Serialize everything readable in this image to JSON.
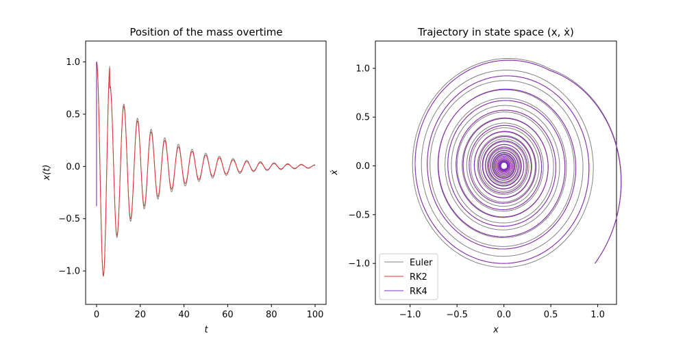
{
  "chart_data": [
    {
      "type": "line",
      "title": "Position of the mass overtime",
      "xlabel": "t",
      "ylabel": "x(t)",
      "xlim": [
        -5,
        105
      ],
      "ylim": [
        -1.32,
        1.2
      ],
      "xticks": [
        0,
        20,
        40,
        60,
        80,
        100
      ],
      "xtick_labels": [
        "0",
        "20",
        "40",
        "60",
        "80",
        "100"
      ],
      "yticks": [
        -1.0,
        -0.5,
        0.0,
        0.5,
        1.0
      ],
      "ytick_labels": [
        "−1.0",
        "−0.5",
        "0.0",
        "0.5",
        "1.0"
      ],
      "t_range": [
        0,
        100
      ],
      "series": [
        {
          "name": "Euler",
          "color": "#808080",
          "amplitude_peaks": [
            1.0,
            1.07,
            0.93,
            0.81,
            0.7,
            0.61,
            0.53,
            0.45,
            0.4,
            0.34,
            0.3,
            0.26,
            0.22,
            0.2,
            0.17,
            0.15,
            0.13,
            0.11,
            0.1,
            0.09,
            0.08,
            0.07,
            0.06,
            0.05,
            0.04,
            0.035,
            0.03,
            0.025,
            0.02,
            0.018,
            0.015,
            0.013
          ]
        },
        {
          "name": "RK2",
          "color": "#e8302f",
          "amplitude_peaks": [
            1.0,
            1.07,
            0.92,
            0.79,
            0.67,
            0.57,
            0.49,
            0.42,
            0.36,
            0.3,
            0.26,
            0.22,
            0.19,
            0.16,
            0.14,
            0.12,
            0.1,
            0.09,
            0.08,
            0.07,
            0.06,
            0.05,
            0.04,
            0.035,
            0.03,
            0.025,
            0.02,
            0.018,
            0.015,
            0.013,
            0.011,
            0.01
          ]
        },
        {
          "name": "RK4",
          "color": "#6a1b9a",
          "note_segment_t": [
            0,
            0.3
          ],
          "values_start": [
            1.0,
            -0.38
          ]
        }
      ]
    },
    {
      "type": "line",
      "title": "Trajectory in state space (x, ẋ)",
      "xlabel": "x",
      "ylabel": "ẋ",
      "xlim": [
        -1.37,
        1.2
      ],
      "ylim": [
        -1.42,
        1.28
      ],
      "xticks": [
        -1.0,
        -0.5,
        0.0,
        0.5,
        1.0
      ],
      "xtick_labels": [
        "−1.0",
        "−0.5",
        "0.0",
        "0.5",
        "1.0"
      ],
      "yticks": [
        -1.0,
        -0.5,
        0.0,
        0.5,
        1.0
      ],
      "ytick_labels": [
        "−1.0",
        "−0.5",
        "0.0",
        "0.5",
        "1.0"
      ],
      "legend": {
        "position": "lower-left",
        "entries": [
          "Euler",
          "RK2",
          "RK4"
        ]
      },
      "series": [
        {
          "name": "Euler",
          "color": "#808080",
          "start": [
            1.0,
            -1.0
          ],
          "radii": [
            1.15,
            1.02,
            0.92,
            0.84,
            0.76,
            0.68,
            0.61,
            0.54,
            0.48,
            0.42,
            0.37,
            0.32,
            0.28,
            0.24,
            0.2,
            0.17,
            0.14,
            0.11,
            0.09,
            0.07,
            0.05,
            0.035,
            0.02
          ]
        },
        {
          "name": "RK2",
          "color": "#e8302f",
          "start": [
            1.0,
            -1.0
          ],
          "radii": [
            1.15,
            0.97,
            0.83,
            0.71,
            0.61,
            0.52,
            0.45,
            0.38,
            0.32,
            0.27,
            0.23,
            0.19,
            0.16,
            0.13,
            0.11,
            0.09,
            0.07,
            0.055,
            0.04,
            0.03,
            0.02
          ]
        },
        {
          "name": "RK4",
          "color": "#7b2fbf",
          "start": [
            1.0,
            -1.0
          ],
          "radii": [
            1.15,
            0.97,
            0.83,
            0.71,
            0.61,
            0.52,
            0.45,
            0.38,
            0.32,
            0.27,
            0.23,
            0.19,
            0.16,
            0.13,
            0.11,
            0.09,
            0.07,
            0.055,
            0.04,
            0.03,
            0.02
          ]
        }
      ]
    }
  ]
}
